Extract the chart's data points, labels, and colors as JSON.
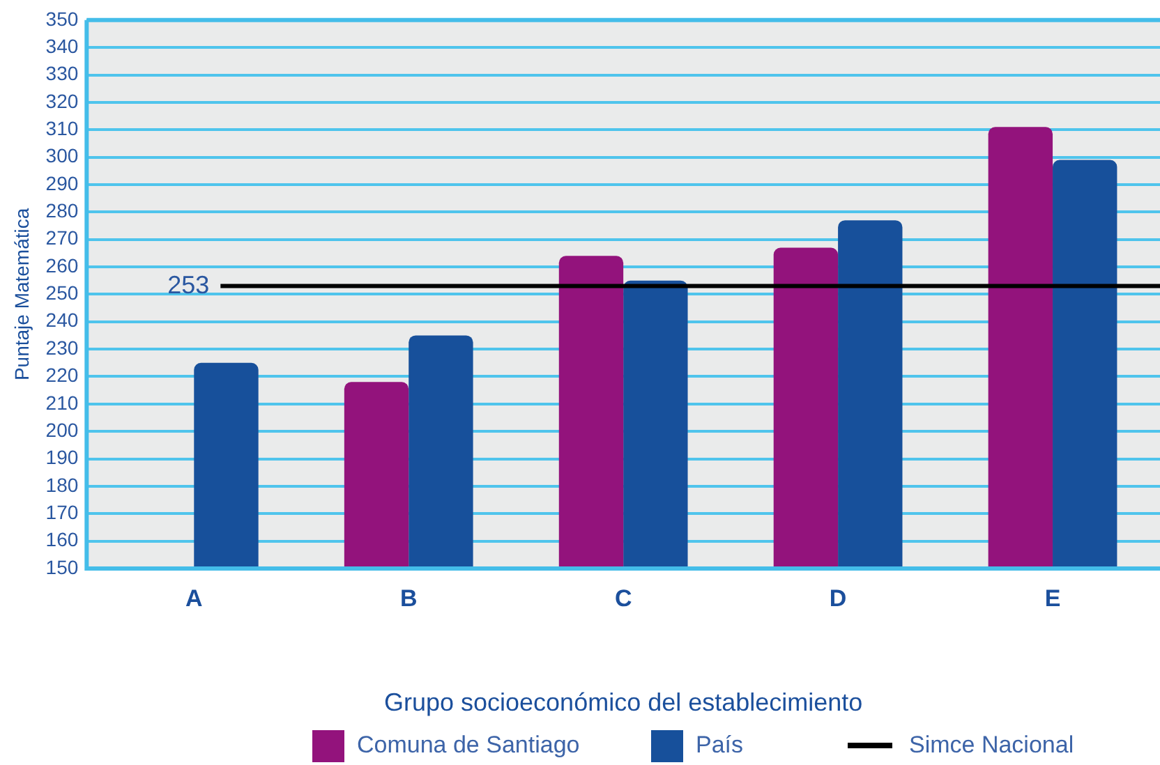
{
  "chart_data": {
    "type": "bar",
    "xlabel": "Grupo socioeconómico del establecimiento",
    "ylabel": "Puntaje Matemática",
    "categories": [
      "A",
      "B",
      "C",
      "D",
      "E"
    ],
    "series": [
      {
        "name": "Comuna de Santiago",
        "color": "#93137c",
        "values": [
          null,
          218,
          264,
          267,
          311
        ]
      },
      {
        "name": "País",
        "color": "#17509b",
        "values": [
          225,
          235,
          255,
          277,
          299
        ]
      }
    ],
    "ylim": [
      150,
      350
    ],
    "yticks": [
      150,
      160,
      170,
      180,
      190,
      200,
      210,
      220,
      230,
      240,
      250,
      260,
      270,
      280,
      290,
      300,
      310,
      320,
      330,
      340,
      350
    ],
    "grid": "y",
    "legend": "bottom",
    "ref_lines": [
      {
        "axis": "y",
        "value": 253,
        "label": "Simce Nacional",
        "color": "#000000"
      }
    ],
    "annotations": [
      "253"
    ]
  }
}
